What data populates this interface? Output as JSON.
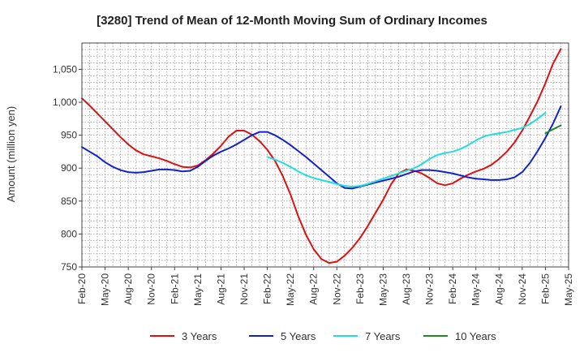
{
  "chart_data": {
    "type": "line",
    "title": "[3280]  Trend of Mean of 12-Month Moving Sum of Ordinary Incomes",
    "xlabel": "",
    "ylabel": "Amount (million yen)",
    "ylim": [
      750,
      1090
    ],
    "yticks": [
      750,
      800,
      850,
      900,
      950,
      1000,
      1050
    ],
    "ytick_labels": [
      "750",
      "800",
      "850",
      "900",
      "950",
      "1,000",
      "1,050"
    ],
    "x_start": "Feb-20",
    "x_end": "May-25",
    "xtick_labels": [
      "Feb-20",
      "May-20",
      "Aug-20",
      "Nov-20",
      "Feb-21",
      "May-21",
      "Aug-21",
      "Nov-21",
      "Feb-22",
      "May-22",
      "Aug-22",
      "Nov-22",
      "Feb-23",
      "May-23",
      "Aug-23",
      "Nov-23",
      "Feb-24",
      "May-24",
      "Aug-24",
      "Nov-24",
      "Feb-25",
      "May-25"
    ],
    "grid": true,
    "legend_position": "bottom",
    "series": [
      {
        "name": "3 Years",
        "color": "#dd1111",
        "start_index": 0,
        "values": [
          1006,
          995,
          983,
          971,
          959,
          947,
          936,
          927,
          921,
          918,
          915,
          911,
          906,
          902,
          901,
          904,
          912,
          922,
          934,
          948,
          957,
          957,
          951,
          941,
          928,
          911,
          888,
          860,
          827,
          799,
          777,
          762,
          756,
          758,
          767,
          779,
          794,
          812,
          832,
          852,
          875,
          892,
          898,
          896,
          892,
          885,
          877,
          874,
          877,
          884,
          890,
          895,
          899,
          905,
          914,
          925,
          939,
          957,
          979,
          1002,
          1029,
          1059,
          1081
        ]
      },
      {
        "name": "5 Years",
        "color": "#1122cc",
        "start_index": 0,
        "values": [
          932,
          925,
          918,
          909,
          902,
          897,
          894,
          893,
          894,
          896,
          898,
          898,
          897,
          895,
          896,
          902,
          911,
          919,
          925,
          930,
          936,
          943,
          950,
          955,
          955,
          950,
          943,
          935,
          926,
          917,
          907,
          897,
          887,
          877,
          870,
          869,
          872,
          875,
          878,
          881,
          884,
          887,
          891,
          895,
          897,
          897,
          896,
          894,
          892,
          889,
          886,
          884,
          883,
          882,
          882,
          883,
          886,
          894,
          908,
          926,
          946,
          968,
          994
        ]
      },
      {
        "name": "7 Years",
        "color": "#22dddd",
        "start_index": 24,
        "values": [
          917,
          913,
          908,
          902,
          895,
          889,
          885,
          882,
          879,
          876,
          873,
          872,
          873,
          876,
          880,
          884,
          888,
          892,
          896,
          900,
          906,
          914,
          920,
          923,
          925,
          929,
          935,
          942,
          948,
          951,
          953,
          955,
          958,
          961,
          967,
          975,
          984
        ]
      },
      {
        "name": "10 Years",
        "color": "#228822",
        "start_index": 60,
        "values": [
          953,
          959,
          965
        ]
      }
    ]
  }
}
